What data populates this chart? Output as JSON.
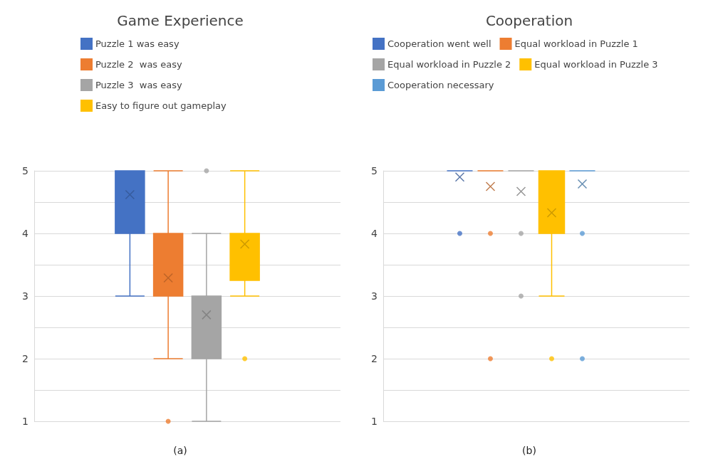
{
  "chart_data": [
    {
      "type": "box",
      "title": "Game Experience",
      "categories": [
        null
      ],
      "legend": "top",
      "grid": "y",
      "tick_labels": "y",
      "ylim": [
        1,
        5
      ],
      "yticks": [
        1,
        {
          "value": 1.5,
          "label": null
        },
        2,
        {
          "value": 2.5,
          "label": null
        },
        3,
        {
          "value": 3.5,
          "label": null
        },
        4,
        {
          "value": 4.5,
          "label": null
        },
        5
      ],
      "annotations": [
        "(a)"
      ],
      "series": [
        {
          "name": "Puzzle 1 was easy",
          "color": "#4472c4",
          "boxes": [
            {
              "low": 3,
              "q1": 4,
              "median": 5,
              "q3": 5,
              "high": 5,
              "mean": 4.62
            }
          ]
        },
        {
          "name": "Puzzle 2  was easy",
          "color": "#ed7d31",
          "boxes": [
            {
              "low": 2,
              "q1": 3,
              "median": 3,
              "q3": 4,
              "high": 5,
              "mean": 3.29,
              "outliers": [
                1
              ]
            }
          ]
        },
        {
          "name": "Puzzle 3  was easy",
          "color": "#a5a5a5",
          "boxes": [
            {
              "low": 1,
              "q1": 2,
              "median": 3,
              "q3": 3,
              "high": 4,
              "mean": 2.7,
              "outliers": [
                5
              ]
            }
          ]
        },
        {
          "name": "Easy to figure out gameplay",
          "color": "#ffc000",
          "boxes": [
            {
              "low": 3,
              "q1": 3.25,
              "median": 4,
              "q3": 4,
              "high": 5,
              "mean": 3.83,
              "outliers": [
                2
              ]
            }
          ]
        }
      ]
    },
    {
      "type": "box",
      "title": "Cooperation",
      "categories": [
        null
      ],
      "legend": "top",
      "grid": "y",
      "tick_labels": "y",
      "ylim": [
        1,
        5
      ],
      "yticks": [
        1,
        {
          "value": 1.5,
          "label": null
        },
        2,
        {
          "value": 2.5,
          "label": null
        },
        3,
        {
          "value": 3.5,
          "label": null
        },
        4,
        {
          "value": 4.5,
          "label": null
        },
        5
      ],
      "annotations": [
        "(b)"
      ],
      "series": [
        {
          "name": "Cooperation went well",
          "color": "#4472c4",
          "boxes": [
            {
              "low": 5,
              "q1": 5,
              "median": 5,
              "q3": 5,
              "high": 5,
              "mean": 4.9,
              "outliers": [
                4
              ]
            }
          ]
        },
        {
          "name": "Equal workload in Puzzle 1",
          "color": "#ed7d31",
          "boxes": [
            {
              "low": 5,
              "q1": 5,
              "median": 5,
              "q3": 5,
              "high": 5,
              "mean": 4.75,
              "outliers": [
                4,
                2
              ]
            }
          ]
        },
        {
          "name": "Equal workload in Puzzle 2",
          "color": "#a5a5a5",
          "boxes": [
            {
              "low": 5,
              "q1": 5,
              "median": 5,
              "q3": 5,
              "high": 5,
              "mean": 4.67,
              "outliers": [
                4,
                3
              ]
            }
          ]
        },
        {
          "name": "Equal workload in Puzzle 3",
          "color": "#ffc000",
          "boxes": [
            {
              "low": 3,
              "q1": 4,
              "median": 5,
              "q3": 5,
              "high": 5,
              "mean": 4.33,
              "outliers": [
                2
              ]
            }
          ]
        },
        {
          "name": "Cooperation necessary",
          "color": "#5b9bd5",
          "boxes": [
            {
              "low": 5,
              "q1": 5,
              "median": 5,
              "q3": 5,
              "high": 5,
              "mean": 4.79,
              "outliers": [
                4,
                2
              ]
            }
          ]
        }
      ]
    }
  ]
}
